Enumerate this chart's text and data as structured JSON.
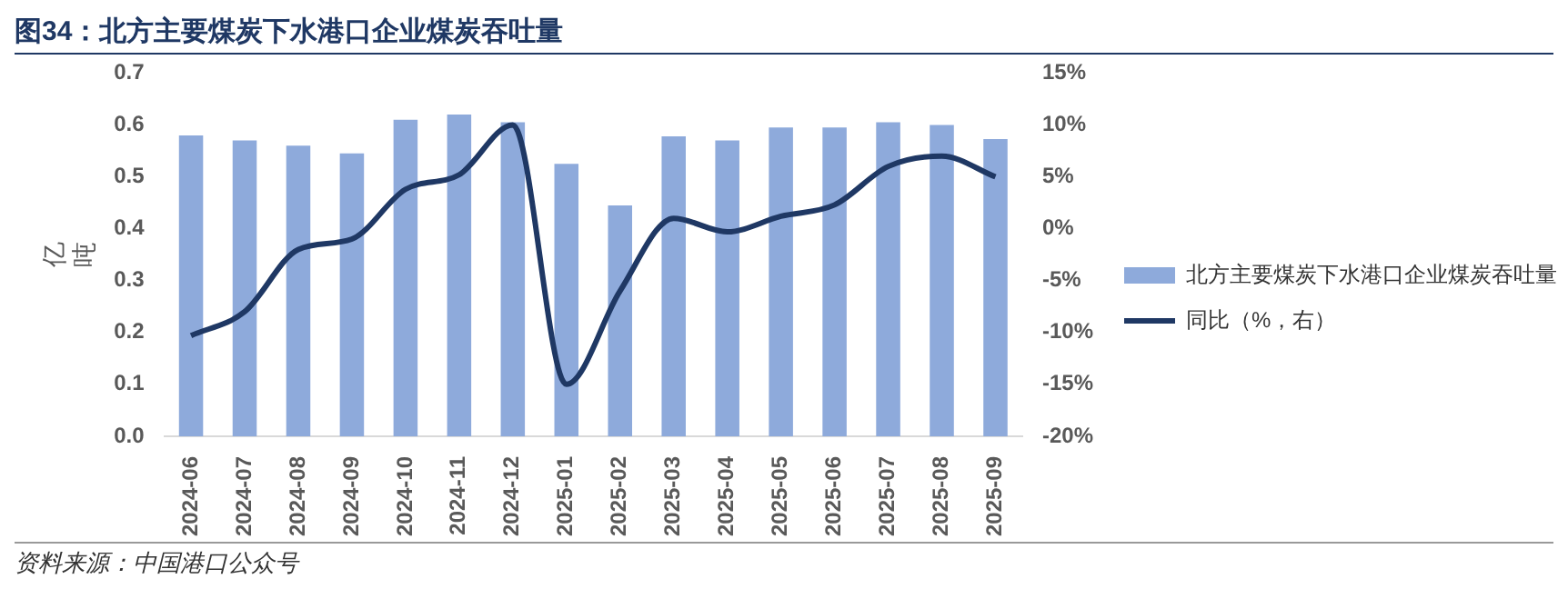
{
  "chart_data": {
    "type": "bar",
    "title": "图34：北方主要煤炭下水港口企业煤炭吞吐量",
    "ylabel": "亿吨",
    "categories": [
      "2024-06",
      "2024-07",
      "2024-08",
      "2024-09",
      "2024-10",
      "2024-11",
      "2024-12",
      "2025-01",
      "2025-02",
      "2025-03",
      "2025-04",
      "2025-05",
      "2025-06",
      "2025-07",
      "2025-08",
      "2025-09"
    ],
    "series": [
      {
        "name": "北方主要煤炭下水港口企业煤炭吞吐量",
        "color": "#8eaadb",
        "values": [
          0.58,
          0.57,
          0.56,
          0.545,
          0.61,
          0.62,
          0.605,
          0.525,
          0.445,
          0.578,
          0.57,
          0.595,
          0.595,
          0.605,
          0.6,
          0.573
        ]
      },
      {
        "name": "同比（%，右）",
        "type": "line",
        "axis": "y2",
        "color": "#1f3864",
        "values": [
          -10.3,
          -8,
          -2,
          -1,
          3.8,
          5.2,
          10,
          -15,
          -6,
          1,
          -0.3,
          1.2,
          2.3,
          6,
          7,
          5
        ]
      }
    ],
    "ylim": [
      0,
      0.7
    ],
    "yticks": [
      {
        "value": 0,
        "label": "0.0"
      },
      0.1,
      0.2,
      0.3,
      0.4,
      0.5,
      0.6,
      0.7
    ],
    "y2lim": [
      -20,
      15
    ],
    "y2ticks": [
      {
        "value": -20,
        "label": "-20%"
      },
      {
        "value": -15,
        "label": "-15%"
      },
      {
        "value": -10,
        "label": "-10%"
      },
      {
        "value": -5,
        "label": "-5%"
      },
      {
        "value": 0,
        "label": "0%"
      },
      {
        "value": 5,
        "label": "5%"
      },
      {
        "value": 10,
        "label": "10%"
      },
      {
        "value": 15,
        "label": "15%"
      }
    ],
    "grid": false,
    "legend": "right",
    "marker": "none",
    "line_style": "solid",
    "annotations": [
      "资料来源：中国港口公众号"
    ]
  }
}
